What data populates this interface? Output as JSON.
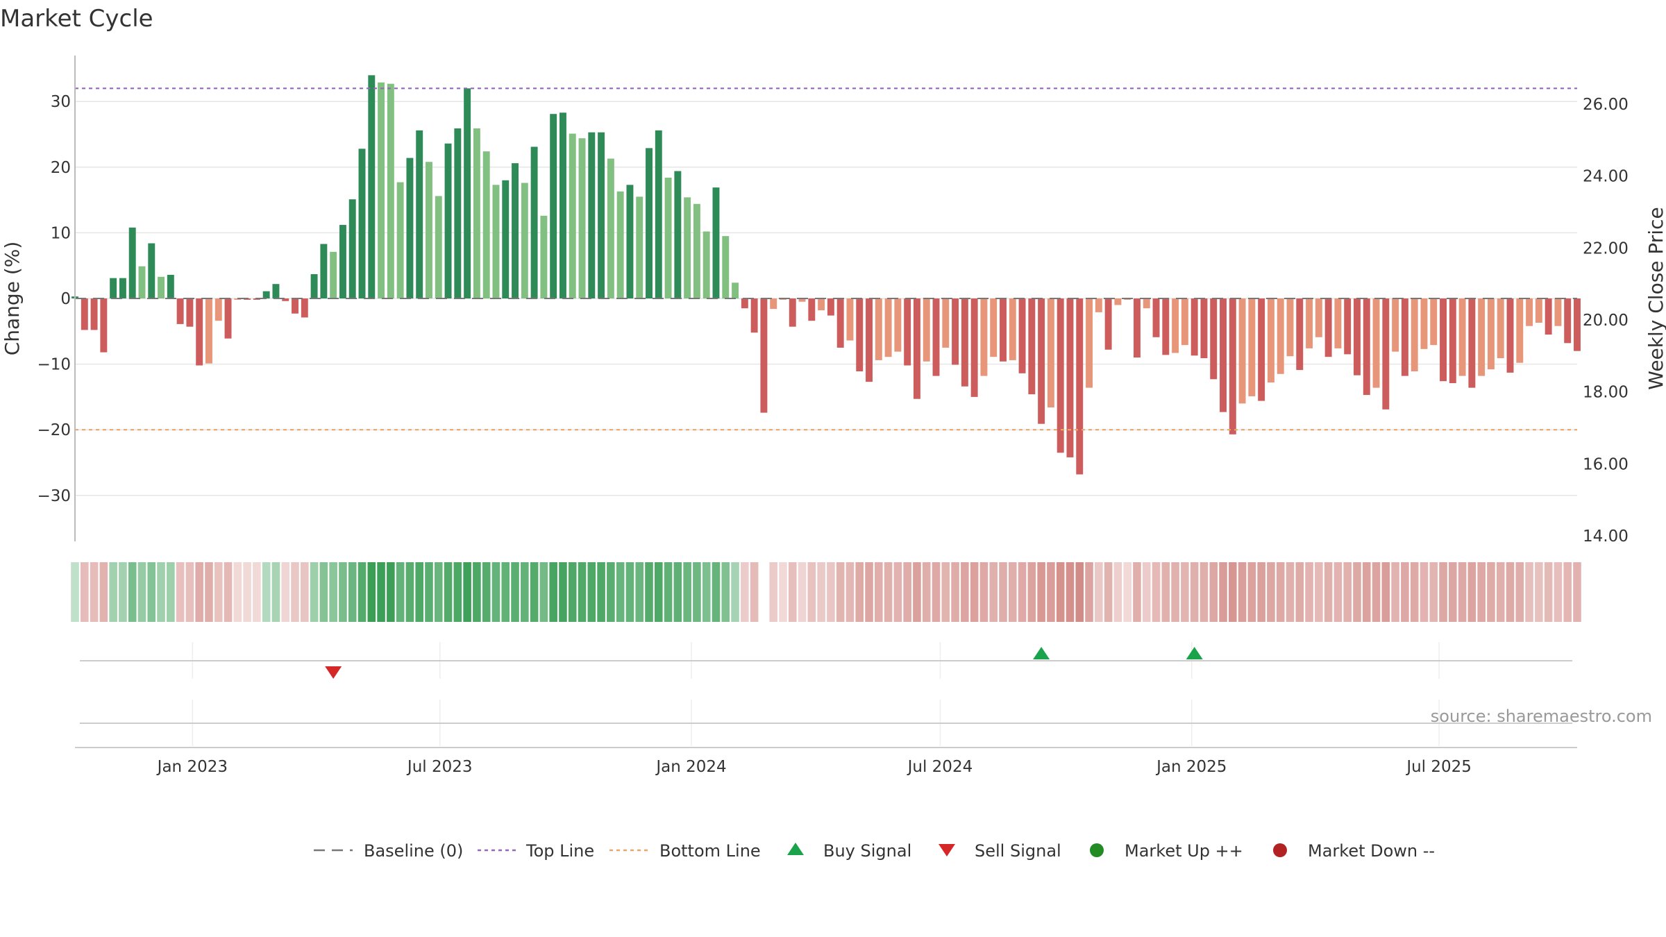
{
  "chart_data": {
    "type": "bar",
    "title": "Market Cycle",
    "source": "source: sharemaestro.com",
    "ylabel_left": "Change (%)",
    "ylabel_right": "Weekly Close Price",
    "y_left_range": [
      -37,
      37
    ],
    "y_left_ticks": [
      30,
      20,
      10,
      0,
      -10,
      -20,
      -30
    ],
    "y_left_tick_labels": [
      "30",
      "20",
      "10",
      "0",
      "−10",
      "−20",
      "−30"
    ],
    "y_right_ticks": [
      "26.00",
      "24.00",
      "22.00",
      "20.00",
      "18.00",
      "16.00",
      "14.00"
    ],
    "x_range": [
      "2022-10-07",
      "2025-10-10"
    ],
    "x_ticks": [
      {
        "date": "2023-01-01",
        "label": "Jan 2023"
      },
      {
        "date": "2023-07-01",
        "label": "Jul 2023"
      },
      {
        "date": "2024-01-01",
        "label": "Jan 2024"
      },
      {
        "date": "2024-07-01",
        "label": "Jul 2024"
      },
      {
        "date": "2025-01-01",
        "label": "Jan 2025"
      },
      {
        "date": "2025-07-01",
        "label": "Jul 2025"
      }
    ],
    "start_week": "2022-10-07",
    "week_step_days": 7,
    "top_line": 32,
    "bottom_line": -20,
    "values": [
      0.3,
      -4.8,
      -4.8,
      -8.2,
      3.1,
      3.1,
      10.8,
      4.9,
      8.4,
      3.3,
      3.6,
      -3.9,
      -4.3,
      -10.2,
      -9.9,
      -3.4,
      -6.1,
      -0.2,
      -0.2,
      -0.2,
      1.1,
      2.2,
      -0.4,
      -2.3,
      -2.9,
      3.7,
      8.3,
      7.1,
      11.2,
      15.1,
      22.8,
      34.0,
      32.9,
      32.7,
      17.7,
      21.4,
      25.6,
      20.8,
      15.6,
      23.6,
      25.9,
      32.0,
      25.9,
      22.4,
      17.3,
      18.0,
      20.6,
      17.6,
      23.1,
      12.6,
      28.1,
      28.3,
      25.1,
      24.4,
      25.3,
      25.3,
      21.3,
      16.3,
      17.3,
      15.5,
      22.9,
      25.6,
      18.4,
      19.4,
      15.4,
      14.4,
      10.2,
      16.9,
      9.5,
      2.4,
      -1.5,
      -5.2,
      -17.4,
      -1.6,
      -0.2,
      -4.3,
      -0.5,
      -3.4,
      -1.8,
      -2.6,
      -7.5,
      -6.4,
      -11.1,
      -12.7,
      -9.4,
      -8.9,
      -8.1,
      -10.2,
      -15.3,
      -9.6,
      -11.8,
      -7.5,
      -10.1,
      -13.4,
      -15.0,
      -11.8,
      -8.9,
      -9.6,
      -9.4,
      -11.4,
      -14.6,
      -19.1,
      -16.6,
      -23.5,
      -24.2,
      -26.8,
      -13.6,
      -2.1,
      -7.8,
      -1.0,
      -0.2,
      -9.0,
      -1.5,
      -5.9,
      -8.6,
      -8.3,
      -7.1,
      -8.7,
      -9.1,
      -12.3,
      -17.3,
      -20.7,
      -16.0,
      -14.9,
      -15.6,
      -12.8,
      -11.5,
      -8.8,
      -10.9,
      -7.6,
      -5.9,
      -8.9,
      -7.6,
      -8.5,
      -11.7,
      -14.7,
      -13.6,
      -16.9,
      -8.1,
      -11.8,
      -11.1,
      -7.7,
      -7.1,
      -12.6,
      -12.9,
      -11.8,
      -13.6,
      -11.8,
      -10.8,
      -9.1,
      -11.3,
      -9.8,
      -4.2,
      -3.7,
      -5.5,
      -4.2,
      -6.8,
      -8.0
    ],
    "heat_gap_index": 72,
    "signals": [
      {
        "type": "sell",
        "date": "2023-04-14"
      },
      {
        "type": "buy",
        "date": "2024-09-13"
      },
      {
        "type": "buy",
        "date": "2025-01-03"
      }
    ],
    "colors": {
      "up_strong": "#2e8b57",
      "up_weak": "#82c081",
      "down_strong": "#cd5c5c",
      "down_weak": "#e8967a",
      "top_line": "#9467bd",
      "bottom_line": "#e8a66a",
      "buy": "#1aa34a",
      "sell": "#d62728",
      "market_up": "#228b22",
      "market_down": "#b22222"
    },
    "legend": [
      {
        "label": "Baseline (0)",
        "kind": "dash"
      },
      {
        "label": "Top Line",
        "kind": "dot-purple"
      },
      {
        "label": "Bottom Line",
        "kind": "dot-orange"
      },
      {
        "label": "Buy Signal",
        "kind": "tri-up"
      },
      {
        "label": "Sell Signal",
        "kind": "tri-down"
      },
      {
        "label": "Market Up ++",
        "kind": "circle-green"
      },
      {
        "label": "Market Down --",
        "kind": "circle-red"
      }
    ],
    "legend_position": "bottom-center"
  }
}
